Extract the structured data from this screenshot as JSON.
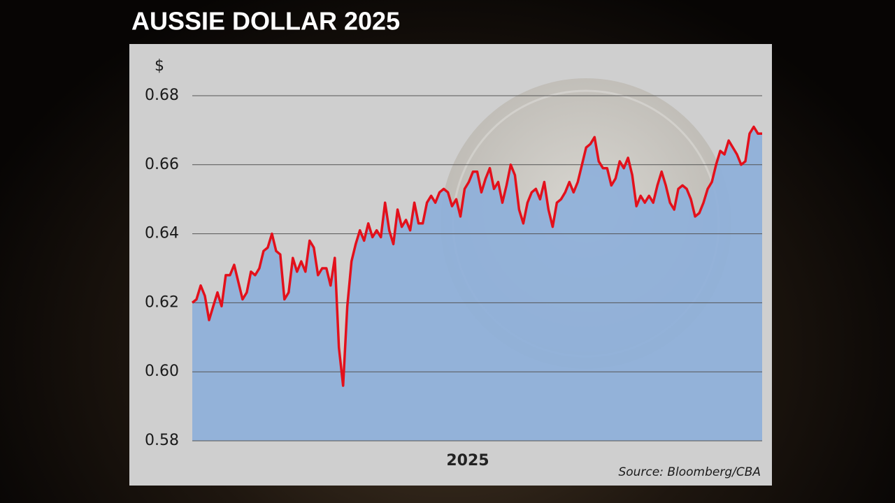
{
  "chart_data": {
    "type": "line",
    "title": "AUSSIE DOLLAR 2025",
    "ylabel": "$",
    "xlabel": "2025",
    "source": "Source: Bloomberg/CBA",
    "color": "#e3101b",
    "fill_color": "#8eb0da",
    "grid": true,
    "ylim": [
      0.58,
      0.68
    ],
    "yticks": [
      0.58,
      {
        "value": 0.6,
        "label": "0.60"
      },
      0.62,
      0.64,
      0.66,
      0.68
    ],
    "values": [
      0.62,
      0.621,
      0.625,
      0.622,
      0.615,
      0.619,
      0.623,
      0.619,
      0.628,
      0.628,
      0.631,
      0.626,
      0.621,
      0.623,
      0.629,
      0.628,
      0.63,
      0.635,
      0.636,
      0.64,
      0.635,
      0.634,
      0.621,
      0.623,
      0.633,
      0.629,
      0.632,
      0.629,
      0.638,
      0.636,
      0.628,
      0.63,
      0.63,
      0.625,
      0.633,
      0.607,
      0.596,
      0.619,
      0.632,
      0.637,
      0.641,
      0.638,
      0.643,
      0.639,
      0.641,
      0.639,
      0.649,
      0.641,
      0.637,
      0.647,
      0.642,
      0.644,
      0.641,
      0.649,
      0.643,
      0.643,
      0.649,
      0.651,
      0.649,
      0.652,
      0.653,
      0.652,
      0.648,
      0.65,
      0.645,
      0.653,
      0.655,
      0.658,
      0.658,
      0.652,
      0.656,
      0.659,
      0.653,
      0.655,
      0.649,
      0.654,
      0.66,
      0.657,
      0.647,
      0.643,
      0.649,
      0.652,
      0.653,
      0.65,
      0.655,
      0.647,
      0.642,
      0.649,
      0.65,
      0.652,
      0.655,
      0.652,
      0.655,
      0.66,
      0.665,
      0.666,
      0.668,
      0.661,
      0.659,
      0.659,
      0.654,
      0.656,
      0.661,
      0.659,
      0.662,
      0.657,
      0.648,
      0.651,
      0.649,
      0.651,
      0.649,
      0.654,
      0.658,
      0.654,
      0.649,
      0.647,
      0.653,
      0.654,
      0.653,
      0.65,
      0.645,
      0.646,
      0.649,
      0.653,
      0.655,
      0.66,
      0.664,
      0.663,
      0.667,
      0.665,
      0.663,
      0.66,
      0.661,
      0.669,
      0.671,
      0.669,
      0.669
    ]
  }
}
